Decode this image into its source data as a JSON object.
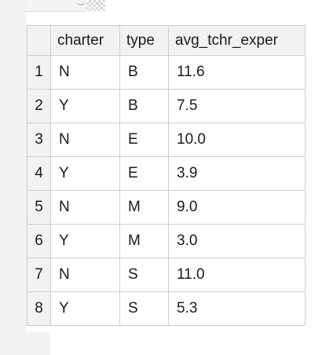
{
  "grid": {
    "columns": [
      "charter",
      "type",
      "avg_tchr_exper"
    ],
    "rows": [
      {
        "n": "1",
        "charter": "N",
        "type": "B",
        "avg_tchr_exper": "11.6"
      },
      {
        "n": "2",
        "charter": "Y",
        "type": "B",
        "avg_tchr_exper": "7.5"
      },
      {
        "n": "3",
        "charter": "N",
        "type": "E",
        "avg_tchr_exper": "10.0"
      },
      {
        "n": "4",
        "charter": "Y",
        "type": "E",
        "avg_tchr_exper": "3.9"
      },
      {
        "n": "5",
        "charter": "N",
        "type": "M",
        "avg_tchr_exper": "9.0"
      },
      {
        "n": "6",
        "charter": "Y",
        "type": "M",
        "avg_tchr_exper": "3.0"
      },
      {
        "n": "7",
        "charter": "N",
        "type": "S",
        "avg_tchr_exper": "11.0"
      },
      {
        "n": "8",
        "charter": "Y",
        "type": "S",
        "avg_tchr_exper": "5.3"
      }
    ]
  }
}
